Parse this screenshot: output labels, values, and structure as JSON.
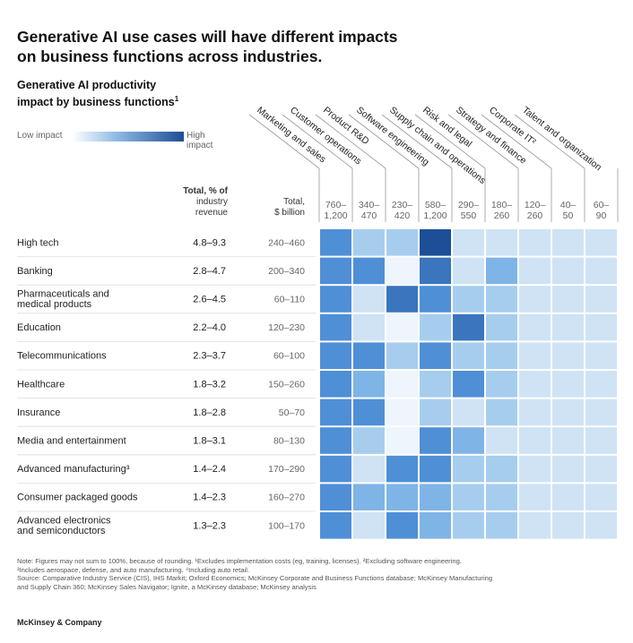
{
  "title_line1": "Generative AI use cases will have different impacts",
  "title_line2": "on business functions across industries.",
  "subtitle_line1": "Generative AI productivity",
  "subtitle_line2": "impact by business functions",
  "subtitle_sup": "1",
  "legend": {
    "low": "Low impact",
    "high": "High impact"
  },
  "total_pct_header": [
    "Total, % of",
    "industry",
    "revenue"
  ],
  "total_bn_header": [
    "Total,",
    "$ billion"
  ],
  "chart_data": {
    "type": "heatmap",
    "functions": [
      "Marketing and sales",
      "Customer operations",
      "Product R&D",
      "Software engineering",
      "Supply chain and operations",
      "Risk and legal",
      "Strategy and finance",
      "Corporate IT²",
      "Talent and organization"
    ],
    "function_totals_bn": [
      [
        "760–",
        "1,200"
      ],
      [
        "340–",
        "470"
      ],
      [
        "230–",
        "420"
      ],
      [
        "580–",
        "1,200"
      ],
      [
        "290–",
        "550"
      ],
      [
        "180–",
        "260"
      ],
      [
        "120–",
        "260"
      ],
      [
        "40–",
        "50"
      ],
      [
        "60–",
        "90"
      ]
    ],
    "industries": [
      {
        "name": [
          "High tech"
        ],
        "pct": "4.8–9.3",
        "bn": "240–460"
      },
      {
        "name": [
          "Banking"
        ],
        "pct": "2.8–4.7",
        "bn": "200–340"
      },
      {
        "name": [
          "Pharmaceuticals and",
          "medical products"
        ],
        "pct": "2.6–4.5",
        "bn": "60–110"
      },
      {
        "name": [
          "Education"
        ],
        "pct": "2.2–4.0",
        "bn": "120–230"
      },
      {
        "name": [
          "Telecommunications"
        ],
        "pct": "2.3–3.7",
        "bn": "60–100"
      },
      {
        "name": [
          "Healthcare"
        ],
        "pct": "1.8–3.2",
        "bn": "150–260"
      },
      {
        "name": [
          "Insurance"
        ],
        "pct": "1.8–2.8",
        "bn": "50–70"
      },
      {
        "name": [
          "Media and entertainment"
        ],
        "pct": "1.8–3.1",
        "bn": "80–130"
      },
      {
        "name": [
          "Advanced manufacturing³"
        ],
        "pct": "1.4–2.4",
        "bn": "170–290"
      },
      {
        "name": [
          "Consumer packaged goods"
        ],
        "pct": "1.4–2.3",
        "bn": "160–270"
      },
      {
        "name": [
          "Advanced electronics",
          "and semiconductors"
        ],
        "pct": "1.3–2.3",
        "bn": "100–170"
      }
    ],
    "impact_levels": [
      [
        4,
        2,
        2,
        6,
        1,
        1,
        1,
        1,
        1
      ],
      [
        4,
        4,
        0,
        5,
        1,
        3,
        1,
        1,
        1
      ],
      [
        4,
        1,
        5,
        4,
        2,
        2,
        1,
        1,
        1
      ],
      [
        4,
        1,
        0,
        2,
        5,
        2,
        1,
        1,
        1
      ],
      [
        4,
        4,
        2,
        4,
        2,
        2,
        1,
        1,
        1
      ],
      [
        4,
        3,
        0,
        2,
        4,
        2,
        1,
        1,
        1
      ],
      [
        4,
        4,
        0,
        2,
        1,
        2,
        1,
        1,
        1
      ],
      [
        4,
        2,
        0,
        4,
        3,
        1,
        1,
        1,
        1
      ],
      [
        4,
        1,
        4,
        4,
        2,
        2,
        1,
        1,
        1
      ],
      [
        4,
        3,
        3,
        3,
        2,
        2,
        1,
        1,
        1
      ],
      [
        4,
        1,
        4,
        3,
        2,
        2,
        1,
        1,
        1
      ]
    ],
    "level_colors": [
      "#eef5fc",
      "#cfe3f5",
      "#a7cdee",
      "#7fb4e6",
      "#4f8fd6",
      "#3a75bd",
      "#1c4f97"
    ]
  },
  "notes": [
    "Note: Figures may not sum to 100%, because of rounding. ¹Excludes implementation costs (eg, training, licenses). ²Excluding software engineering.",
    "³Includes aerospace, defense, and auto manufacturing. ⁴Including auto retail.",
    "Source: Comparative Industry Service (CIS), IHS Markit; Oxford Economics; McKinsey Corporate and Business Functions database; McKinsey Manufacturing",
    "and Supply Chain 360; McKinsey Sales Navigator; Ignite, a McKinsey database; McKinsey analysis"
  ],
  "brand": "McKinsey & Company"
}
